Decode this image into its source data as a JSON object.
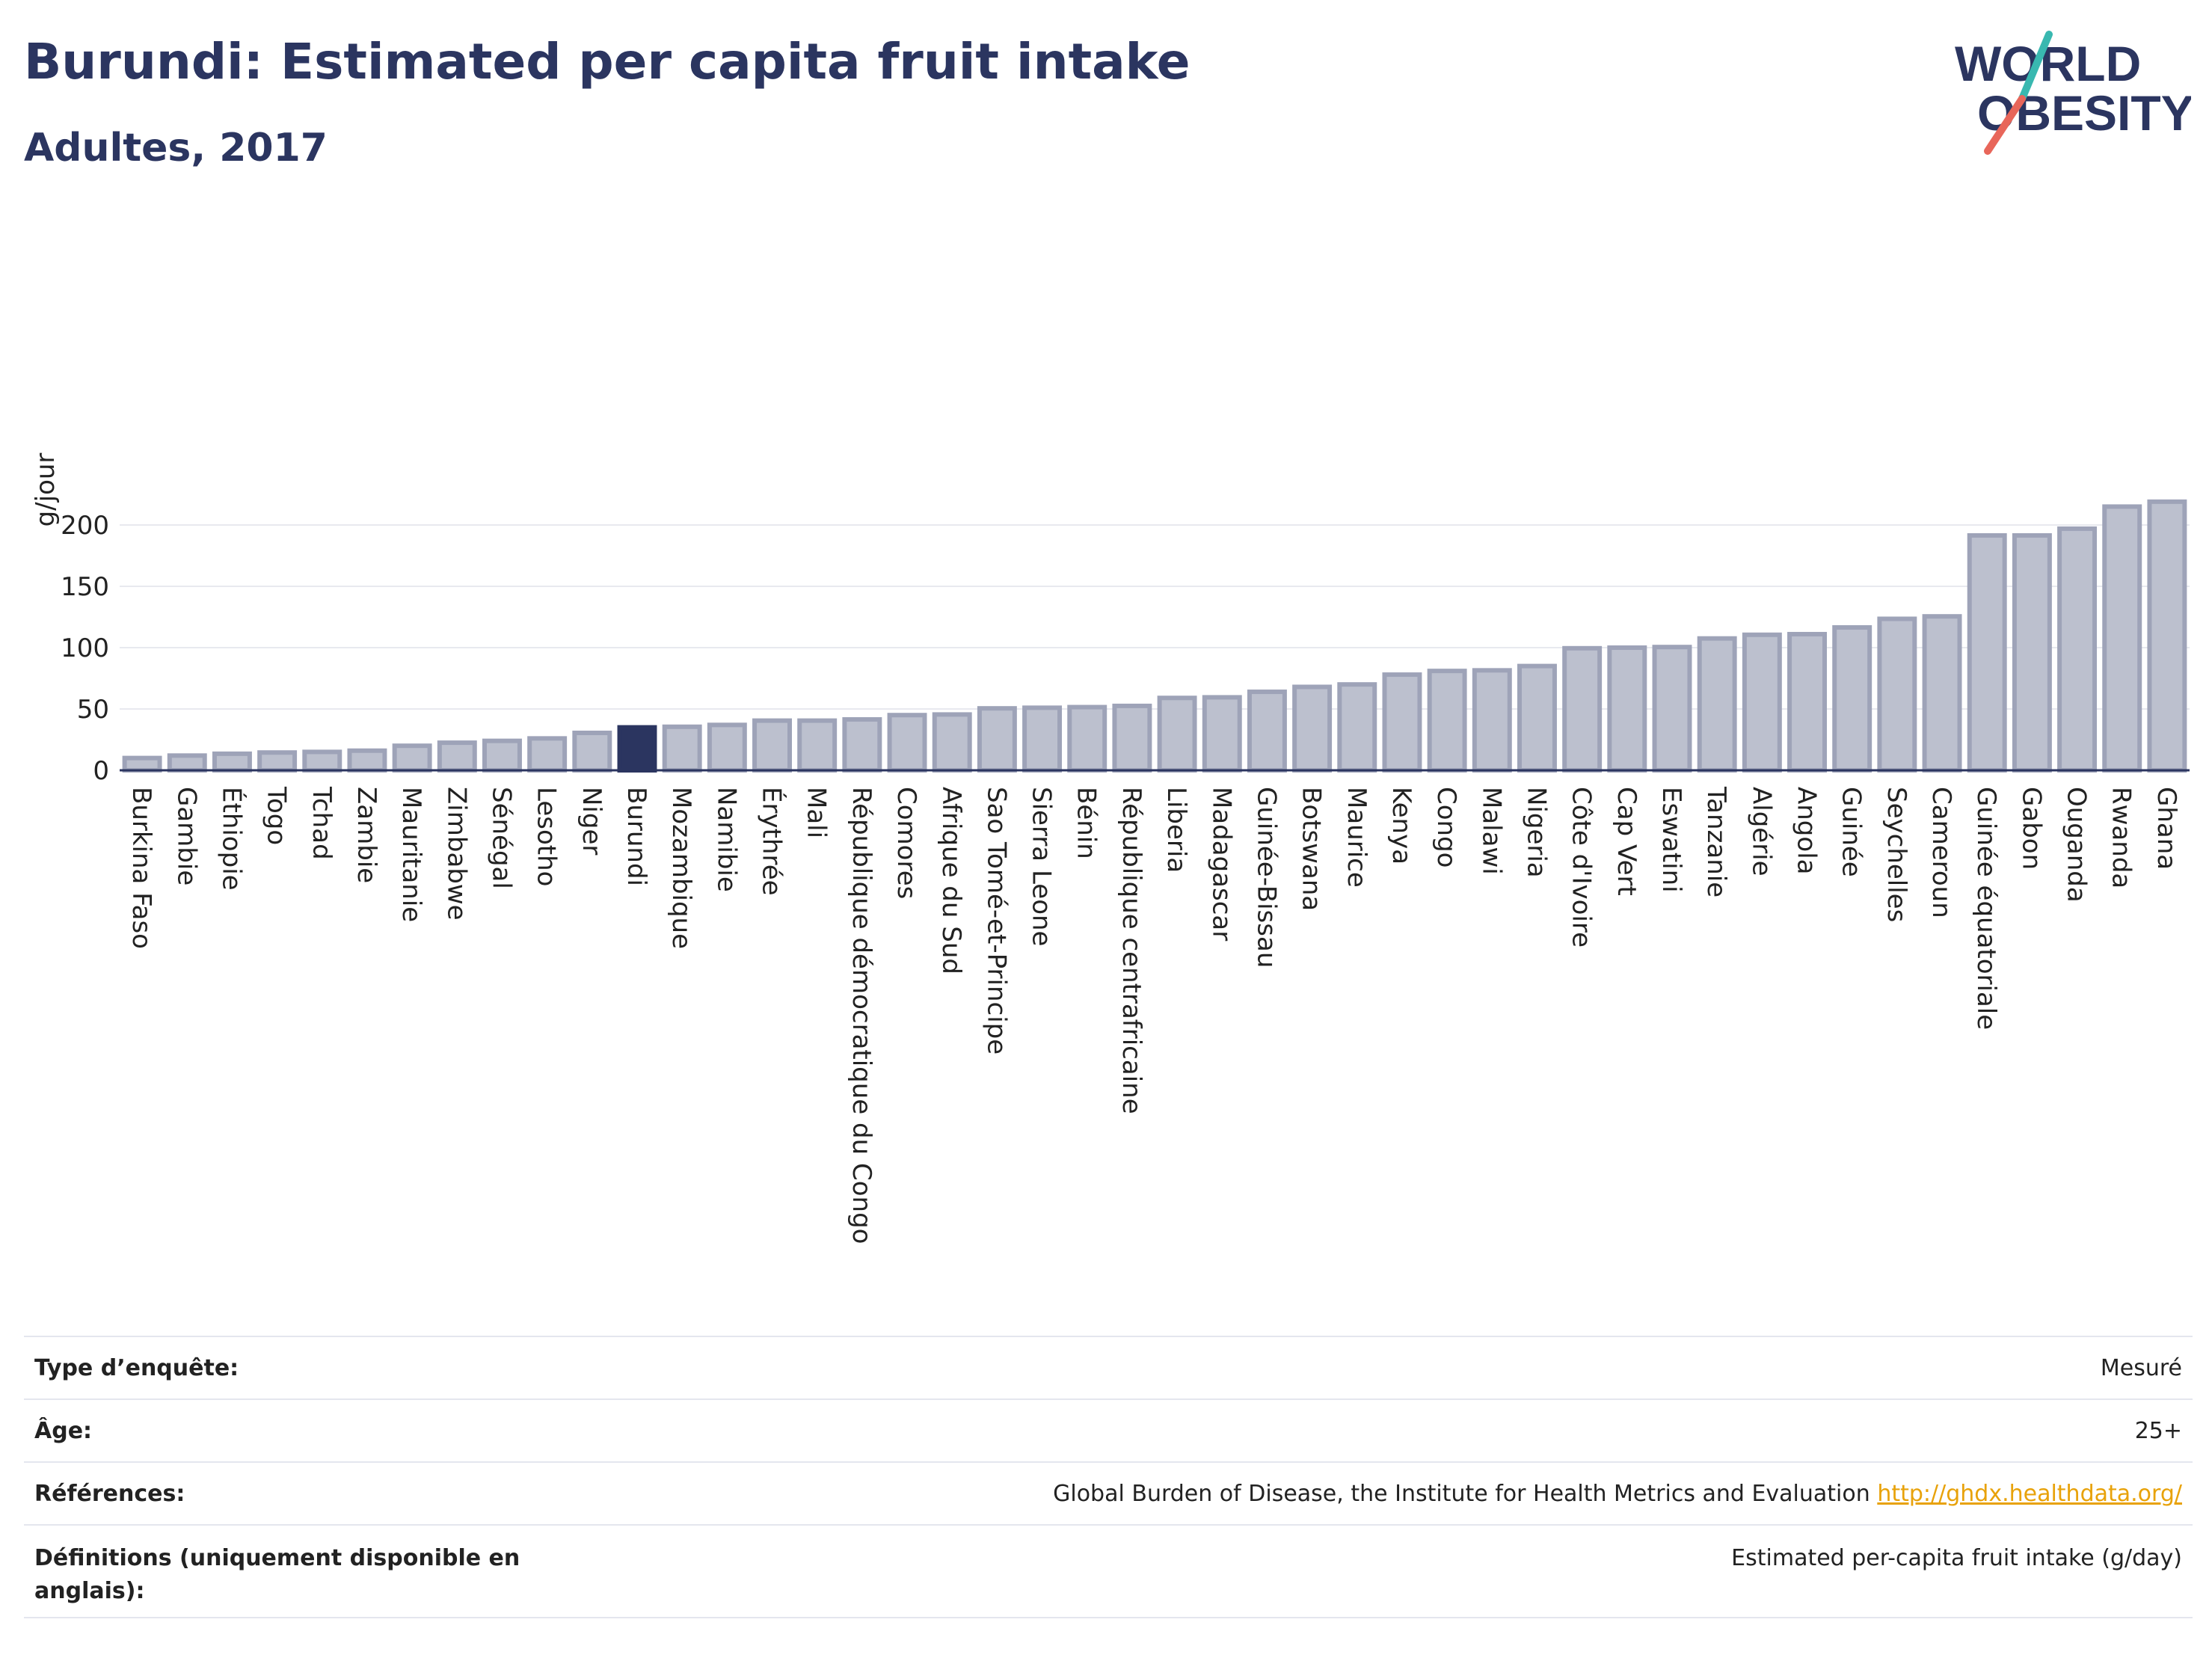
{
  "header": {
    "title": "Burundi: Estimated per capita fruit intake",
    "subtitle": "Adultes, 2017"
  },
  "logo": {
    "line1": "WORLD",
    "line2": "OBESITY"
  },
  "colors": {
    "title": "#2b3560",
    "highlight_bar": "#2b3560",
    "bar_fill": "#bcc0ce",
    "bar_stroke": "#9ea3b8",
    "link": "#e8a20a",
    "logo_teal": "#39b8b0",
    "logo_coral": "#e8665a"
  },
  "chart_data": {
    "type": "bar",
    "title": "Burundi: Estimated per capita fruit intake",
    "subtitle": "Adultes, 2017",
    "xlabel": "",
    "ylabel": "g/jour",
    "ylim": [
      0,
      225
    ],
    "yticks": [
      0,
      50,
      100,
      150,
      200
    ],
    "grid": true,
    "highlight": "Burundi",
    "categories": [
      "Burkina Faso",
      "Gambie",
      "Éthiopie",
      "Togo",
      "Tchad",
      "Zambie",
      "Mauritanie",
      "Zimbabwe",
      "Sénégal",
      "Lesotho",
      "Niger",
      "Burundi",
      "Mozambique",
      "Namibie",
      "Érythrée",
      "Mali",
      "République démocratique du Congo",
      "Comores",
      "Afrique du Sud",
      "Sao Tomé-et-Principe",
      "Sierra Leone",
      "Bénin",
      "République centrafricaine",
      "Liberia",
      "Madagascar",
      "Guinée-Bissau",
      "Botswana",
      "Maurice",
      "Kenya",
      "Congo",
      "Malawi",
      "Nigeria",
      "Côte d'Ivoire",
      "Cap Vert",
      "Eswatini",
      "Tanzanie",
      "Algérie",
      "Angola",
      "Guinée",
      "Seychelles",
      "Cameroun",
      "Guinée équatoriale",
      "Gabon",
      "Ouganda",
      "Rwanda",
      "Ghana"
    ],
    "values": [
      10,
      12,
      13.5,
      14.5,
      15,
      16,
      20,
      22.5,
      24,
      26,
      30.5,
      35,
      35.5,
      37,
      40.5,
      40.5,
      41.5,
      45,
      45.5,
      50.5,
      51,
      51.5,
      52.5,
      59,
      59.5,
      64,
      68,
      70,
      78,
      81,
      81.5,
      85,
      99.5,
      100,
      100.5,
      107.5,
      110.5,
      111,
      116.5,
      123.5,
      125.5,
      191.5,
      191.5,
      197,
      215,
      219
    ]
  },
  "meta": [
    {
      "label": "Type d’enquête:",
      "value": "Mesuré"
    },
    {
      "label": "Âge:",
      "value": "25+"
    },
    {
      "label": "Références:",
      "value": "Global Burden of Disease, the Institute for Health Metrics and Evaluation",
      "link": "http://ghdx.healthdata.org/"
    },
    {
      "label": "Définitions (uniquement disponible en anglais):",
      "value": "Estimated per-capita fruit intake (g/day)"
    }
  ]
}
